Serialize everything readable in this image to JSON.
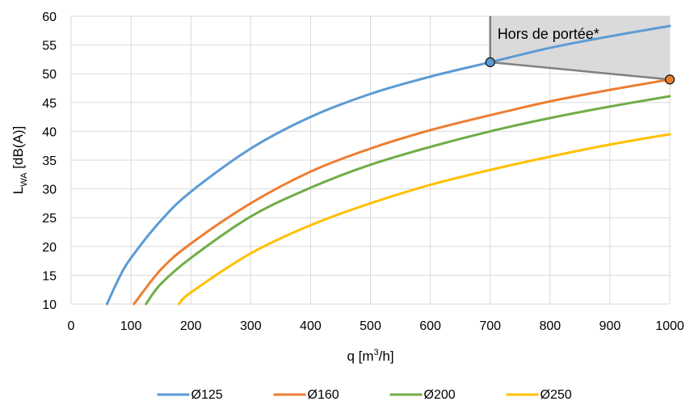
{
  "chart_data": {
    "type": "line",
    "title": "",
    "xlabel": {
      "base": "q [m",
      "sup": "3",
      "tail": "/h]"
    },
    "ylabel": {
      "base": "L",
      "sub": "WA",
      "tail": " [dB(A)]"
    },
    "xlim": [
      0,
      1000
    ],
    "ylim": [
      10,
      60
    ],
    "xticks": [
      0,
      100,
      200,
      300,
      400,
      500,
      600,
      700,
      800,
      900,
      1000
    ],
    "yticks": [
      10,
      15,
      20,
      25,
      30,
      35,
      40,
      45,
      50,
      55,
      60
    ],
    "grid": true,
    "legend_position": "bottom",
    "series": [
      {
        "name": "Ø125",
        "color": "#5B9BD5",
        "x": [
          60,
          80,
          100,
          150,
          200,
          300,
          400,
          500,
          600,
          700,
          800,
          900,
          1000
        ],
        "y": [
          10,
          14.5,
          18,
          24.5,
          29.5,
          37,
          42.5,
          46.5,
          49.5,
          52,
          54.5,
          56.5,
          58.3
        ]
      },
      {
        "name": "Ø160",
        "color": "#ED7D31",
        "x": [
          105,
          150,
          200,
          300,
          400,
          500,
          600,
          700,
          800,
          900,
          1000
        ],
        "y": [
          10,
          16,
          20.5,
          27.5,
          33,
          37,
          40.2,
          42.8,
          45.2,
          47.2,
          49
        ]
      },
      {
        "name": "Ø200",
        "color": "#70AD47",
        "x": [
          125,
          150,
          200,
          300,
          400,
          500,
          600,
          700,
          800,
          900,
          1000
        ],
        "y": [
          10,
          13.5,
          18,
          25.2,
          30.2,
          34.2,
          37.3,
          40,
          42.3,
          44.3,
          46.1
        ]
      },
      {
        "name": "Ø250",
        "color": "#FFC000",
        "x": [
          180,
          200,
          300,
          400,
          500,
          600,
          700,
          800,
          900,
          1000
        ],
        "y": [
          10,
          12,
          18.8,
          23.7,
          27.5,
          30.7,
          33.3,
          35.6,
          37.7,
          39.5
        ]
      }
    ],
    "out_of_range": {
      "label": "Hors de portée*",
      "fill": "#DADADA",
      "edge_color": "#808080",
      "x": [
        700,
        1000
      ],
      "upper_y": 60,
      "lower_y": [
        52,
        49
      ]
    },
    "markers": [
      {
        "x": 700,
        "y": 52,
        "color": "#5B9BD5"
      },
      {
        "x": 1000,
        "y": 49,
        "color": "#ED7D31"
      }
    ]
  }
}
